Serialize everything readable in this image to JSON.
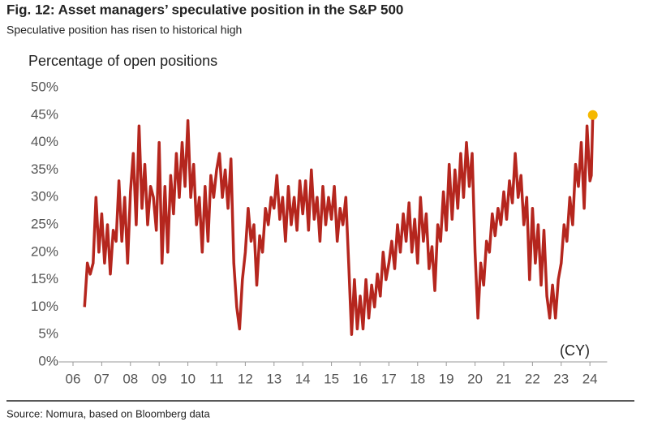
{
  "chart_data": {
    "type": "line",
    "title": "Fig. 12: Asset managers’ speculative position in the S&P 500",
    "subtitle": "Speculative position has risen to historical high",
    "y_label": "Percentage of open positions",
    "x_annotation": "(CY)",
    "source": "Source: Nomura, based on Bloomberg data",
    "xlim": [
      5.5,
      24.6
    ],
    "xticks": [
      {
        "value": 6,
        "label": "06"
      },
      {
        "value": 7,
        "label": "07"
      },
      {
        "value": 8,
        "label": "08"
      },
      {
        "value": 9,
        "label": "09"
      },
      {
        "value": 10,
        "label": "10"
      },
      {
        "value": 11,
        "label": "11"
      },
      {
        "value": 12,
        "label": "12"
      },
      {
        "value": 13,
        "label": "13"
      },
      {
        "value": 14,
        "label": "14"
      },
      {
        "value": 15,
        "label": "15"
      },
      {
        "value": 16,
        "label": "16"
      },
      {
        "value": 17,
        "label": "17"
      },
      {
        "value": 18,
        "label": "18"
      },
      {
        "value": 19,
        "label": "19"
      },
      {
        "value": 20,
        "label": "20"
      },
      {
        "value": 21,
        "label": "21"
      },
      {
        "value": 22,
        "label": "22"
      },
      {
        "value": 23,
        "label": "23"
      },
      {
        "value": 24,
        "label": "24"
      }
    ],
    "ylim": [
      0,
      50
    ],
    "yticks": [
      {
        "value": 0,
        "label": "0%"
      },
      {
        "value": 5,
        "label": "5%"
      },
      {
        "value": 10,
        "label": "10%"
      },
      {
        "value": 15,
        "label": "15%"
      },
      {
        "value": 20,
        "label": "20%"
      },
      {
        "value": 25,
        "label": "25%"
      },
      {
        "value": 30,
        "label": "30%"
      },
      {
        "value": 35,
        "label": "35%"
      },
      {
        "value": 40,
        "label": "40%"
      },
      {
        "value": 45,
        "label": "45%"
      },
      {
        "value": 50,
        "label": "50%"
      }
    ],
    "last_point_color": "#f5b800",
    "x": [
      6.4,
      6.5,
      6.6,
      6.7,
      6.8,
      6.9,
      7.0,
      7.1,
      7.2,
      7.3,
      7.4,
      7.5,
      7.6,
      7.7,
      7.8,
      7.9,
      8.0,
      8.1,
      8.2,
      8.3,
      8.4,
      8.5,
      8.6,
      8.7,
      8.8,
      8.9,
      9.0,
      9.1,
      9.2,
      9.3,
      9.4,
      9.5,
      9.6,
      9.7,
      9.8,
      9.9,
      10.0,
      10.1,
      10.2,
      10.3,
      10.4,
      10.5,
      10.6,
      10.7,
      10.8,
      10.9,
      11.0,
      11.1,
      11.2,
      11.3,
      11.4,
      11.5,
      11.6,
      11.7,
      11.8,
      11.9,
      12.0,
      12.1,
      12.2,
      12.3,
      12.4,
      12.5,
      12.6,
      12.7,
      12.8,
      12.9,
      13.0,
      13.1,
      13.2,
      13.3,
      13.4,
      13.5,
      13.6,
      13.7,
      13.8,
      13.9,
      14.0,
      14.1,
      14.2,
      14.3,
      14.4,
      14.5,
      14.6,
      14.7,
      14.8,
      14.9,
      15.0,
      15.1,
      15.2,
      15.3,
      15.4,
      15.5,
      15.6,
      15.7,
      15.8,
      15.9,
      16.0,
      16.1,
      16.2,
      16.3,
      16.4,
      16.5,
      16.6,
      16.7,
      16.8,
      16.9,
      17.0,
      17.1,
      17.2,
      17.3,
      17.4,
      17.5,
      17.6,
      17.7,
      17.8,
      17.9,
      18.0,
      18.1,
      18.2,
      18.3,
      18.4,
      18.5,
      18.6,
      18.7,
      18.8,
      18.9,
      19.0,
      19.1,
      19.2,
      19.3,
      19.4,
      19.5,
      19.6,
      19.7,
      19.8,
      19.9,
      20.0,
      20.1,
      20.2,
      20.3,
      20.4,
      20.5,
      20.6,
      20.7,
      20.8,
      20.9,
      21.0,
      21.1,
      21.2,
      21.3,
      21.4,
      21.5,
      21.6,
      21.7,
      21.8,
      21.9,
      22.0,
      22.1,
      22.2,
      22.3,
      22.4,
      22.5,
      22.6,
      22.7,
      22.8,
      22.9,
      23.0,
      23.1,
      23.2,
      23.3,
      23.4,
      23.5,
      23.6,
      23.7,
      23.8,
      23.9,
      24.0,
      24.05,
      24.1
    ],
    "series": [
      {
        "name": "Speculative position",
        "color": "#b5261e",
        "values": [
          10,
          18,
          16,
          18,
          30,
          20,
          27,
          18,
          25,
          16,
          24,
          22,
          33,
          22,
          30,
          18,
          31,
          38,
          25,
          43,
          28,
          36,
          25,
          32,
          30,
          24,
          40,
          18,
          32,
          20,
          34,
          27,
          38,
          30,
          40,
          32,
          44,
          30,
          36,
          25,
          30,
          20,
          32,
          22,
          34,
          30,
          35,
          38,
          30,
          35,
          28,
          37,
          18,
          10,
          6,
          15,
          20,
          28,
          22,
          25,
          14,
          23,
          20,
          28,
          25,
          30,
          28,
          34,
          26,
          30,
          22,
          32,
          25,
          30,
          24,
          33,
          27,
          33,
          24,
          35,
          26,
          30,
          22,
          32,
          25,
          30,
          26,
          32,
          22,
          28,
          25,
          30,
          18,
          5,
          15,
          6,
          12,
          6,
          15,
          8,
          14,
          10,
          16,
          12,
          20,
          15,
          18,
          22,
          17,
          25,
          20,
          27,
          22,
          29,
          20,
          26,
          18,
          30,
          22,
          27,
          17,
          21,
          13,
          25,
          22,
          31,
          24,
          36,
          26,
          35,
          28,
          38,
          30,
          40,
          32,
          38,
          20,
          8,
          18,
          14,
          22,
          20,
          27,
          23,
          28,
          25,
          31,
          26,
          33,
          29,
          38,
          30,
          34,
          25,
          30,
          15,
          28,
          18,
          25,
          14,
          24,
          12,
          8,
          14,
          8,
          15,
          18,
          25,
          22,
          30,
          25,
          36,
          32,
          40,
          28,
          43,
          33,
          34,
          45
        ]
      }
    ]
  }
}
